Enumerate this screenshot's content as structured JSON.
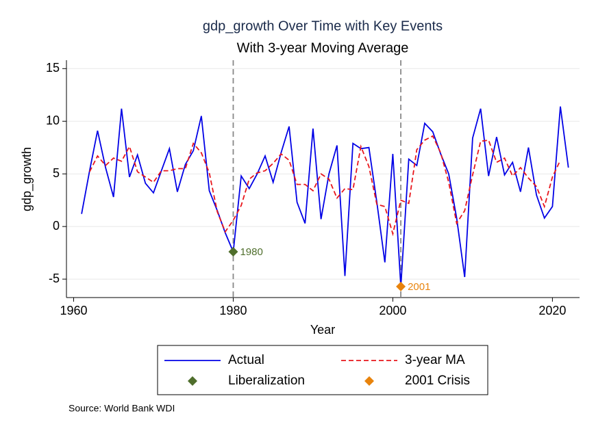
{
  "chart_data": {
    "type": "line",
    "title": "gdp_growth Over Time with Key Events",
    "subtitle": "With 3-year Moving Average",
    "x_label": "Year",
    "y_label": "gdp_growth",
    "source": "Source: World Bank WDI",
    "x": [
      1961,
      1962,
      1963,
      1964,
      1965,
      1966,
      1967,
      1968,
      1969,
      1970,
      1971,
      1972,
      1973,
      1974,
      1975,
      1976,
      1977,
      1978,
      1979,
      1980,
      1981,
      1982,
      1983,
      1984,
      1985,
      1986,
      1987,
      1988,
      1989,
      1990,
      1991,
      1992,
      1993,
      1994,
      1995,
      1996,
      1997,
      1998,
      1999,
      2000,
      2001,
      2002,
      2003,
      2004,
      2005,
      2006,
      2007,
      2008,
      2009,
      2010,
      2011,
      2012,
      2013,
      2014,
      2015,
      2016,
      2017,
      2018,
      2019,
      2020,
      2021,
      2022
    ],
    "series": [
      {
        "name": "Actual",
        "color": "#0000e6",
        "dash": false,
        "values": [
          1.2,
          5.3,
          9.1,
          5.6,
          2.8,
          11.2,
          4.7,
          6.8,
          4.1,
          3.2,
          5.3,
          7.4,
          3.3,
          5.9,
          7.2,
          10.5,
          3.4,
          1.5,
          -0.6,
          -2.4,
          4.8,
          3.6,
          5.0,
          6.7,
          4.2,
          7.0,
          9.5,
          2.3,
          0.3,
          9.3,
          0.7,
          5.0,
          7.7,
          -4.7,
          7.9,
          7.4,
          7.5,
          2.3,
          -3.4,
          6.9,
          -5.7,
          6.4,
          5.8,
          9.8,
          9.0,
          6.9,
          5.0,
          0.8,
          -4.8,
          8.4,
          11.2,
          4.8,
          8.5,
          4.9,
          6.1,
          3.3,
          7.5,
          3.0,
          0.8,
          1.9,
          11.4,
          5.6
        ]
      },
      {
        "name": "3-year MA",
        "color": "#e8151b",
        "dash": true,
        "values": [
          null,
          5.2,
          6.7,
          5.8,
          6.5,
          6.2,
          7.6,
          5.2,
          4.7,
          4.2,
          5.3,
          5.3,
          5.5,
          5.5,
          7.9,
          7.0,
          5.1,
          1.4,
          -0.5,
          0.6,
          2.0,
          4.5,
          5.1,
          5.3,
          6.0,
          6.9,
          6.3,
          4.0,
          4.0,
          3.4,
          5.0,
          4.5,
          2.7,
          3.6,
          3.5,
          7.6,
          5.7,
          2.1,
          1.9,
          -0.7,
          2.5,
          2.2,
          7.3,
          8.2,
          8.6,
          7.0,
          4.2,
          0.3,
          1.5,
          4.9,
          8.1,
          8.2,
          6.1,
          6.5,
          4.8,
          5.6,
          4.6,
          3.8,
          1.9,
          4.7,
          6.3,
          null
        ]
      }
    ],
    "events": [
      {
        "name": "Liberalization",
        "x": 1980,
        "y": -2.4,
        "color": "#4f6e2c"
      },
      {
        "name": "2001 Crisis",
        "x": 2001,
        "y": -5.7,
        "color": "#e8830c"
      }
    ],
    "xlim": [
      1959.1,
      2023.4
    ],
    "ylim": [
      -6.75,
      15.8
    ],
    "xticks": [
      1960,
      1980,
      2000,
      2020
    ],
    "yticks": [
      -5,
      0,
      5,
      10,
      15
    ],
    "grid": true
  }
}
